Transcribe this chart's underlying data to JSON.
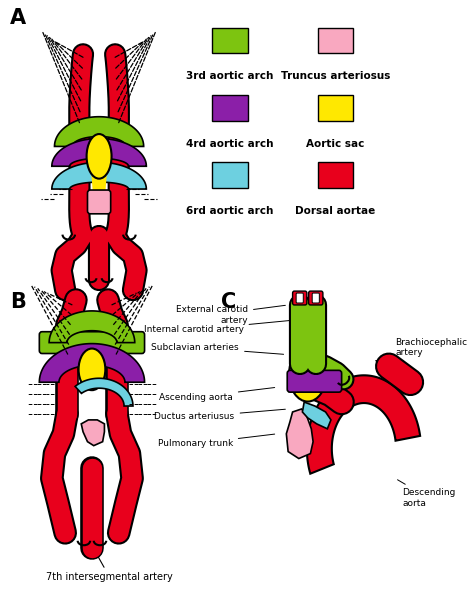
{
  "colors": {
    "red": "#E8001C",
    "green": "#7DC410",
    "purple": "#8B1FA8",
    "cyan": "#6DD0E0",
    "yellow": "#FFE800",
    "pink": "#F9A8C0",
    "white": "#FFFFFF",
    "black": "#000000"
  },
  "legend": {
    "items_left": [
      "3rd aortic arch",
      "4rd aortic arch",
      "6rd aortic arch"
    ],
    "items_right": [
      "Truncus arteriosus",
      "Aortic sac",
      "Dorsal aortae"
    ],
    "colors_left": [
      "#7DC410",
      "#8B1FA8",
      "#6DD0E0"
    ],
    "colors_right": [
      "#F9A8C0",
      "#FFE800",
      "#E8001C"
    ]
  },
  "panel_labels": [
    "A",
    "B",
    "C"
  ],
  "panel_C_annotations": [
    [
      "External carotid\nartery",
      320,
      305,
      275,
      315
    ],
    [
      "Internal carotid artery",
      330,
      320,
      270,
      330
    ],
    [
      "Subclavian arteries",
      318,
      355,
      265,
      348
    ],
    [
      "Ascending aorta",
      308,
      388,
      258,
      398
    ],
    [
      "Ductus arteriusus",
      320,
      410,
      260,
      418
    ],
    [
      "Pulmonary trunk",
      308,
      435,
      258,
      445
    ],
    [
      "Brachiocephalic\nartery",
      415,
      362,
      440,
      348
    ],
    [
      "Descending\naorta",
      440,
      480,
      448,
      500
    ]
  ],
  "panel_B_annotation": [
    "7th intersegmental artery",
    105,
    556,
    105,
    575
  ]
}
